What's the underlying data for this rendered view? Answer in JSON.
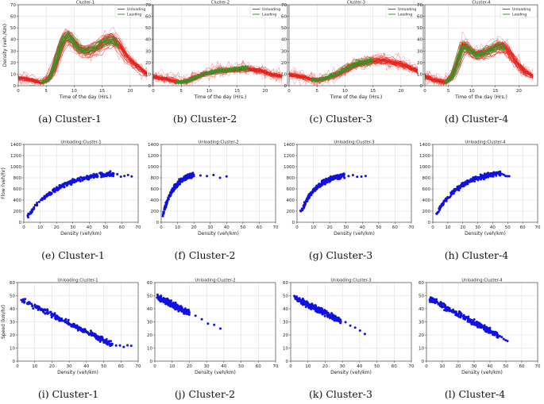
{
  "chart_data": [
    {
      "id": "a",
      "type": "line",
      "title": "Cluster-1",
      "caption": "(a)  Cluster-1",
      "xlabel": "Time of the day (Hrs.)",
      "ylabel": "Density (veh./Km)",
      "xlim": [
        0,
        24
      ],
      "ylim": [
        0,
        70
      ],
      "xticks": [
        0,
        5,
        10,
        15,
        20
      ],
      "yticks": [
        0,
        10,
        20,
        30,
        40,
        50,
        60,
        70
      ],
      "legend": [
        "Unloading",
        "Loading"
      ],
      "colors": {
        "unload": "#e8211b",
        "load": "#2e9a27"
      },
      "series": [
        {
          "name": "Unloading",
          "x": [
            0,
            2,
            4,
            5,
            6,
            7,
            8,
            9,
            10,
            11,
            12,
            13,
            14,
            15,
            16,
            17,
            18,
            19,
            20,
            21,
            22,
            23
          ],
          "values": [
            7,
            5,
            3,
            4,
            10,
            25,
            40,
            44,
            37,
            32,
            30,
            31,
            33,
            37,
            40,
            41,
            36,
            28,
            22,
            18,
            14,
            10
          ]
        },
        {
          "name": "Loading",
          "x": [
            4,
            5,
            6,
            7,
            8,
            9,
            10,
            11,
            12,
            13,
            14,
            15,
            16,
            17,
            18
          ],
          "values": [
            3,
            4,
            11,
            27,
            41,
            43,
            36,
            31,
            30,
            31,
            34,
            37,
            39,
            38,
            34
          ]
        }
      ]
    },
    {
      "id": "b",
      "type": "line",
      "title": "Cluster-2",
      "caption": "(b)  Cluster-2",
      "xlabel": "Time of the day (Hrs.)",
      "ylabel": "",
      "xlim": [
        0,
        24
      ],
      "ylim": [
        0,
        70
      ],
      "xticks": [
        0,
        5,
        10,
        15,
        20
      ],
      "yticks": [
        0,
        10,
        20,
        30,
        40,
        50,
        60,
        70
      ],
      "legend": [
        "Unloading",
        "Loading"
      ],
      "colors": {
        "unload": "#e8211b",
        "load": "#2e9a27"
      },
      "series": [
        {
          "name": "Unloading",
          "x": [
            0,
            2,
            4,
            5,
            6,
            7,
            8,
            9,
            10,
            11,
            12,
            13,
            14,
            15,
            16,
            17,
            18,
            19,
            20,
            21,
            22,
            23
          ],
          "values": [
            8,
            6,
            4,
            3,
            4,
            6,
            8,
            10,
            11,
            12,
            13,
            13,
            14,
            14,
            15,
            15,
            14,
            13,
            12,
            10,
            9,
            8
          ]
        },
        {
          "name": "Loading",
          "x": [
            4,
            5,
            6,
            7,
            8,
            9,
            10,
            11,
            12,
            13,
            14,
            15,
            16,
            17
          ],
          "values": [
            3,
            3,
            4,
            6,
            8,
            10,
            11,
            12,
            13,
            13,
            14,
            14,
            15,
            15
          ]
        }
      ]
    },
    {
      "id": "c",
      "type": "line",
      "title": "Cluster-3",
      "caption": "(c)  Cluster-3",
      "xlabel": "Time of the day (Hrs.)",
      "ylabel": "",
      "xlim": [
        0,
        24
      ],
      "ylim": [
        0,
        70
      ],
      "xticks": [
        0,
        5,
        10,
        15,
        20
      ],
      "yticks": [
        0,
        10,
        20,
        30,
        40,
        50,
        60,
        70
      ],
      "legend": [
        "Unloading",
        "Loading"
      ],
      "colors": {
        "unload": "#e8211b",
        "load": "#2e9a27"
      },
      "series": [
        {
          "name": "Unloading",
          "x": [
            0,
            2,
            4,
            5,
            6,
            7,
            8,
            9,
            10,
            11,
            12,
            13,
            14,
            15,
            16,
            17,
            18,
            19,
            20,
            21,
            22,
            23
          ],
          "values": [
            10,
            8,
            6,
            5,
            6,
            7,
            9,
            11,
            14,
            17,
            19,
            20,
            21,
            22,
            22,
            22,
            21,
            20,
            19,
            17,
            15,
            13
          ]
        },
        {
          "name": "Loading",
          "x": [
            4,
            5,
            6,
            7,
            8,
            9,
            10,
            11,
            12,
            13,
            14,
            15
          ],
          "values": [
            5,
            5,
            6,
            8,
            10,
            12,
            15,
            18,
            20,
            21,
            22,
            22
          ]
        }
      ]
    },
    {
      "id": "d",
      "type": "line",
      "title": "Cluster-4",
      "caption": "(d)  Cluster-4",
      "xlabel": "Time of the day (Hrs.)",
      "ylabel": "",
      "xlim": [
        0,
        24
      ],
      "ylim": [
        0,
        70
      ],
      "xticks": [
        0,
        5,
        10,
        15,
        20
      ],
      "yticks": [
        0,
        10,
        20,
        30,
        40,
        50,
        60,
        70
      ],
      "legend": [
        "Unloading",
        "Loading"
      ],
      "colors": {
        "unload": "#e8211b",
        "load": "#2e9a27"
      },
      "series": [
        {
          "name": "Unloading",
          "x": [
            0,
            2,
            4,
            5,
            6,
            7,
            8,
            9,
            10,
            11,
            12,
            13,
            14,
            15,
            16,
            17,
            18,
            19,
            20,
            21,
            22,
            23
          ],
          "values": [
            8,
            5,
            3,
            4,
            9,
            20,
            34,
            33,
            28,
            26,
            27,
            28,
            30,
            32,
            34,
            33,
            28,
            22,
            17,
            13,
            10,
            8
          ]
        },
        {
          "name": "Loading",
          "x": [
            4,
            5,
            6,
            7,
            8,
            9,
            10,
            11,
            12,
            13,
            14,
            15,
            16,
            17
          ],
          "values": [
            3,
            4,
            9,
            21,
            34,
            33,
            28,
            26,
            27,
            29,
            31,
            33,
            34,
            32
          ]
        }
      ]
    },
    {
      "id": "e",
      "type": "scatter",
      "title": "Unloading:Cluster-1",
      "caption": "(e)  Cluster-1",
      "xlabel": "Density (veh/km)",
      "ylabel": "Flow (veh/hr)",
      "xlim": [
        0,
        70
      ],
      "ylim": [
        0,
        1400
      ],
      "xticks": [
        0,
        10,
        20,
        30,
        40,
        50,
        60,
        70
      ],
      "yticks": [
        0,
        200,
        400,
        600,
        800,
        1000,
        1200,
        1400
      ],
      "color": "#1010e0",
      "density_range": [
        2,
        55
      ],
      "density_max": 66,
      "capacity": 880
    },
    {
      "id": "f",
      "type": "scatter",
      "title": "Unloading:Cluster-2",
      "caption": "(f)  Cluster-2",
      "xlabel": "Density (veh/km)",
      "ylabel": "",
      "xlim": [
        0,
        70
      ],
      "ylim": [
        0,
        1400
      ],
      "xticks": [
        0,
        10,
        20,
        30,
        40,
        50,
        60,
        70
      ],
      "yticks": [
        0,
        200,
        400,
        600,
        800,
        1000,
        1200,
        1400
      ],
      "color": "#1010e0",
      "density_range": [
        1,
        20
      ],
      "density_max": 40,
      "capacity": 860
    },
    {
      "id": "g",
      "type": "scatter",
      "title": "Unloading:Cluster-3",
      "caption": "(g)  Cluster-3",
      "xlabel": "Density (veh/km)",
      "ylabel": "",
      "xlim": [
        0,
        70
      ],
      "ylim": [
        0,
        1400
      ],
      "xticks": [
        0,
        10,
        20,
        30,
        40,
        50,
        60,
        70
      ],
      "yticks": [
        0,
        200,
        400,
        600,
        800,
        1000,
        1200,
        1400
      ],
      "color": "#1010e0",
      "density_range": [
        2,
        29
      ],
      "density_max": 42,
      "capacity": 850
    },
    {
      "id": "h",
      "type": "scatter",
      "title": "Unloading:Cluster-4",
      "caption": "(h)  Cluster-4",
      "xlabel": "Density (veh/km)",
      "ylabel": "",
      "xlim": [
        0,
        70
      ],
      "ylim": [
        0,
        1400
      ],
      "xticks": [
        0,
        10,
        20,
        30,
        40,
        50,
        60,
        70
      ],
      "yticks": [
        0,
        200,
        400,
        600,
        800,
        1000,
        1200,
        1400
      ],
      "color": "#1010e0",
      "density_range": [
        2,
        45
      ],
      "density_max": 51,
      "capacity": 890
    },
    {
      "id": "i",
      "type": "scatter",
      "title": "Unloading:Cluster-1",
      "caption": "(i)  Cluster-1",
      "xlabel": "Density (veh/km)",
      "ylabel": "Speed (km/hr)",
      "xlim": [
        0,
        70
      ],
      "ylim": [
        0,
        60
      ],
      "xticks": [
        0,
        10,
        20,
        30,
        40,
        50,
        60,
        70
      ],
      "yticks": [
        0,
        10,
        20,
        30,
        40,
        50,
        60
      ],
      "color": "#1010e0",
      "density_range": [
        2,
        55
      ],
      "density_max": 66,
      "free_speed": 48
    },
    {
      "id": "j",
      "type": "scatter",
      "title": "Unloading:Cluster-2",
      "caption": "(j)  Cluster-2",
      "xlabel": "Density (veh/km)",
      "ylabel": "",
      "xlim": [
        0,
        70
      ],
      "ylim": [
        0,
        60
      ],
      "xticks": [
        0,
        10,
        20,
        30,
        40,
        50,
        60,
        70
      ],
      "yticks": [
        0,
        10,
        20,
        30,
        40,
        50,
        60
      ],
      "color": "#1010e0",
      "density_range": [
        1,
        20
      ],
      "density_max": 38,
      "free_speed": 50
    },
    {
      "id": "k",
      "type": "scatter",
      "title": "Unloading:Cluster-3",
      "caption": "(k)  Cluster-3",
      "xlabel": "Density (veh/km)",
      "ylabel": "",
      "xlim": [
        0,
        70
      ],
      "ylim": [
        0,
        60
      ],
      "xticks": [
        0,
        10,
        20,
        30,
        40,
        50,
        60,
        70
      ],
      "yticks": [
        0,
        10,
        20,
        30,
        40,
        50,
        60
      ],
      "color": "#1010e0",
      "density_range": [
        2,
        29
      ],
      "density_max": 43,
      "free_speed": 50
    },
    {
      "id": "l",
      "type": "scatter",
      "title": "Unloading:Cluster-4",
      "caption": "(l)  Cluster-4",
      "xlabel": "Density (veh/km)",
      "ylabel": "",
      "xlim": [
        0,
        70
      ],
      "ylim": [
        0,
        60
      ],
      "xticks": [
        0,
        10,
        20,
        30,
        40,
        50,
        60,
        70
      ],
      "yticks": [
        0,
        10,
        20,
        30,
        40,
        50,
        60
      ],
      "color": "#1010e0",
      "density_range": [
        2,
        45
      ],
      "density_max": 51,
      "free_speed": 49
    }
  ]
}
